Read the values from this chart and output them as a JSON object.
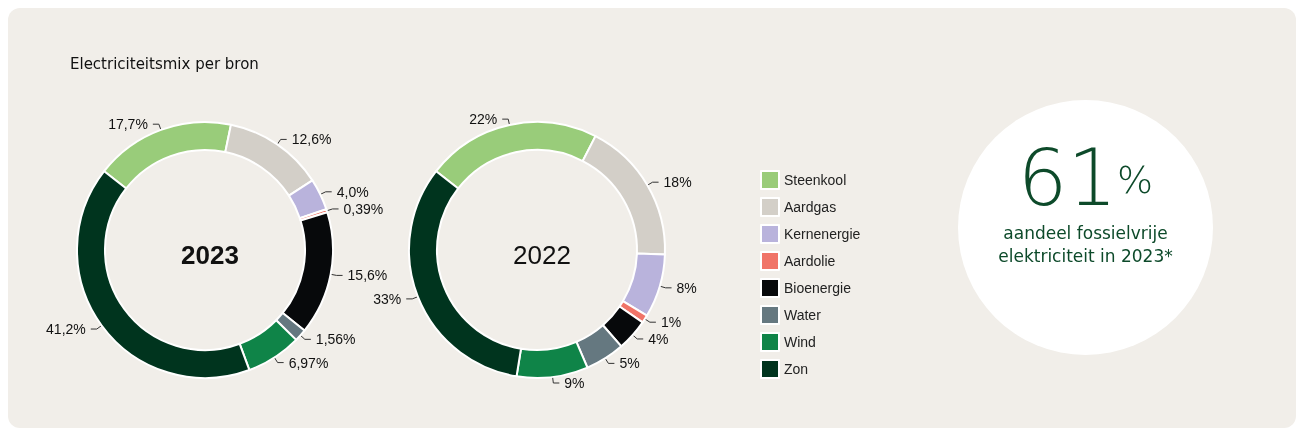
{
  "chart_data": [
    {
      "type": "donut",
      "title": "Electriciteitsmix per bron",
      "categories": [
        "Steenkool",
        "Aardgas",
        "Kernenergie",
        "Aardolie",
        "Bioenergie",
        "Water",
        "Wind",
        "Zon"
      ],
      "legend": "right",
      "series": [
        {
          "name": "2023",
          "values": [
            17.7,
            12.6,
            4.0,
            0.39,
            15.6,
            1.56,
            6.97,
            41.2
          ],
          "value_labels": [
            "17,7%",
            "12,6%",
            "4,0%",
            "0,39%",
            "15,6%",
            "1,56%",
            "6,97%",
            "41,2%"
          ],
          "colors": [
            "#99cc7a",
            "#d3cfc8",
            "#b9b3dc",
            "#f07468",
            "#07090b",
            "#657880",
            "#0f8448",
            "#00341e"
          ]
        },
        {
          "name": "2022",
          "values": [
            22,
            18,
            8,
            1,
            4,
            5,
            9,
            33
          ],
          "value_labels": [
            "22%",
            "18%",
            "8%",
            "1%",
            "4%",
            "5%",
            "9%",
            "33%"
          ],
          "colors": [
            "#99cc7a",
            "#d3cfc8",
            "#b9b3dc",
            "#f07468",
            "#07090b",
            "#657880",
            "#0f8448",
            "#00341e"
          ]
        }
      ]
    },
    {
      "type": "other",
      "annotations": [
        "61$^{%}$",
        "aandeel fossielvrije elektriciteit in 2023*"
      ]
    }
  ]
}
